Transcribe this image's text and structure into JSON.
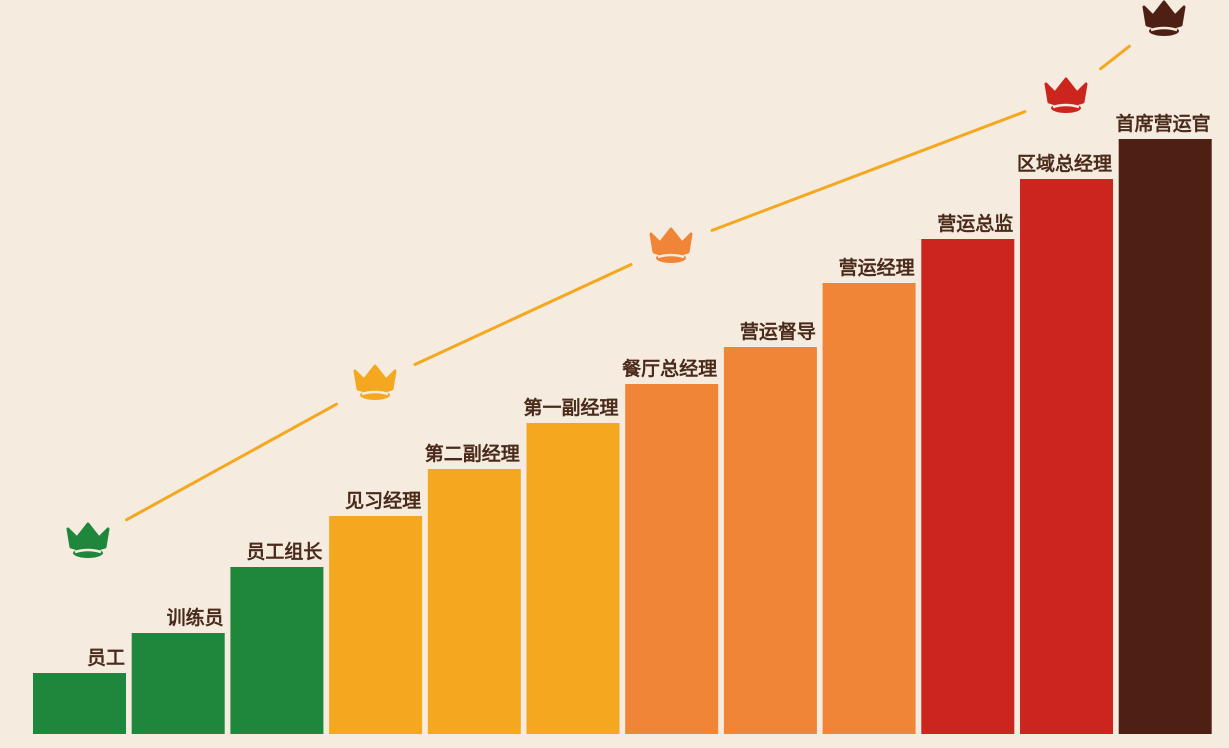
{
  "chart_data": {
    "type": "bar",
    "categories": [
      "员工",
      "训练员",
      "员工组长",
      "见习经理",
      "第二副经理",
      "第一副经理",
      "餐厅总经理",
      "营运督导",
      "营运经理",
      "营运总监",
      "区域总经理",
      "首席营运官"
    ],
    "values": [
      1,
      2,
      3,
      4,
      5,
      6,
      7,
      8,
      9,
      10,
      11,
      12
    ],
    "colors": [
      "#1e873c",
      "#1e873c",
      "#1e873c",
      "#f4a81f",
      "#f4a81f",
      "#f4a81f",
      "#f08437",
      "#f08437",
      "#f08437",
      "#cb251e",
      "#cb251e",
      "#4e2014"
    ],
    "crown_colors": [
      "#1e873c",
      "#f4a81f",
      "#f08437",
      "#cb251e",
      "#4e2014"
    ],
    "line_color": "#f4a81f",
    "background": "#f5ebde",
    "grid": false,
    "legend": "none"
  }
}
